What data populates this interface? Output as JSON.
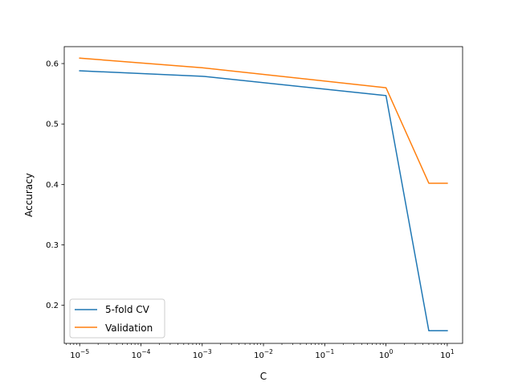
{
  "chart_data": {
    "type": "line",
    "xscale": "log",
    "xlabel": "C",
    "ylabel": "Accuracy",
    "xlim": [
      5.6e-06,
      17.8
    ],
    "ylim": [
      0.137,
      0.628
    ],
    "xticks": [
      {
        "value": 1e-05,
        "base": "10",
        "exp": "−5"
      },
      {
        "value": 0.0001,
        "base": "10",
        "exp": "−4"
      },
      {
        "value": 0.001,
        "base": "10",
        "exp": "−3"
      },
      {
        "value": 0.01,
        "base": "10",
        "exp": "−2"
      },
      {
        "value": 0.1,
        "base": "10",
        "exp": "−1"
      },
      {
        "value": 1,
        "base": "10",
        "exp": "0"
      },
      {
        "value": 10,
        "base": "10",
        "exp": "1"
      }
    ],
    "yticks": [
      {
        "value": 0.2,
        "label": "0.2"
      },
      {
        "value": 0.3,
        "label": "0.3"
      },
      {
        "value": 0.4,
        "label": "0.4"
      },
      {
        "value": 0.5,
        "label": "0.5"
      },
      {
        "value": 0.6,
        "label": "0.6"
      }
    ],
    "x": [
      1e-05,
      0.001,
      1,
      5,
      10
    ],
    "series": [
      {
        "name": "5-fold CV",
        "color": "#1f77b4",
        "values": [
          0.588,
          0.579,
          0.547,
          0.158,
          0.158
        ]
      },
      {
        "name": "Validation",
        "color": "#ff7f0e",
        "values": [
          0.609,
          0.593,
          0.56,
          0.402,
          0.402
        ]
      }
    ],
    "grid": false,
    "legend": "lower-left"
  }
}
